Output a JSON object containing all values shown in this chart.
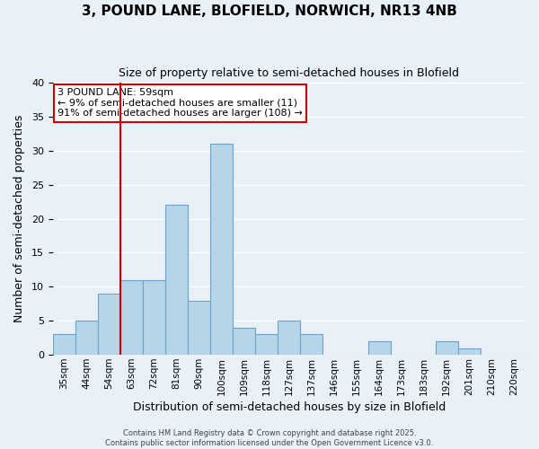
{
  "title_line1": "3, POUND LANE, BLOFIELD, NORWICH, NR13 4NB",
  "title_line2": "Size of property relative to semi-detached houses in Blofield",
  "xlabel": "Distribution of semi-detached houses by size in Blofield",
  "ylabel": "Number of semi-detached properties",
  "bin_labels": [
    "35sqm",
    "44sqm",
    "54sqm",
    "63sqm",
    "72sqm",
    "81sqm",
    "90sqm",
    "100sqm",
    "109sqm",
    "118sqm",
    "127sqm",
    "137sqm",
    "146sqm",
    "155sqm",
    "164sqm",
    "173sqm",
    "183sqm",
    "192sqm",
    "201sqm",
    "210sqm",
    "220sqm"
  ],
  "bar_values": [
    3,
    5,
    9,
    11,
    11,
    22,
    8,
    31,
    4,
    3,
    5,
    3,
    0,
    0,
    2,
    0,
    0,
    2,
    1,
    0,
    0
  ],
  "bar_color": "#b8d4e8",
  "bar_edge_color": "#6aa6cc",
  "ylim": [
    0,
    40
  ],
  "yticks": [
    0,
    5,
    10,
    15,
    20,
    25,
    30,
    35,
    40
  ],
  "annotation_title": "3 POUND LANE: 59sqm",
  "annotation_line1": "← 9% of semi-detached houses are smaller (11)",
  "annotation_line2": "91% of semi-detached houses are larger (108) →",
  "annotation_box_color": "#ffffff",
  "annotation_box_edge_color": "#cc0000",
  "vline_color": "#cc0000",
  "vline_x": 2.5,
  "background_color": "#e8f0f8",
  "grid_color": "#ffffff",
  "footer_line1": "Contains HM Land Registry data © Crown copyright and database right 2025.",
  "footer_line2": "Contains public sector information licensed under the Open Government Licence v3.0."
}
